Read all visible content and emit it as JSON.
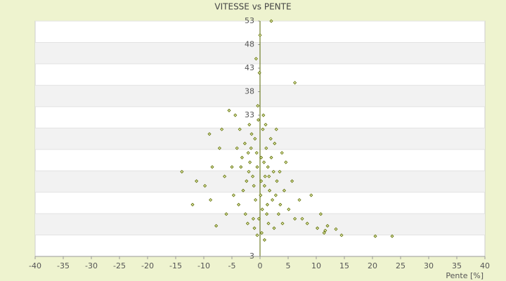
{
  "chart_data": {
    "type": "scatter",
    "title": "VITESSE vs PENTE",
    "x_label": "Pente [%]",
    "color": "#5b6b00",
    "xlim": [
      -40,
      40
    ],
    "xticks": [
      -40,
      -35,
      -30,
      -25,
      -20,
      -15,
      -10,
      -5,
      0,
      5,
      10,
      15,
      20,
      25,
      30,
      35,
      40
    ],
    "ylim": [
      3,
      53
    ],
    "yticks": [
      3,
      33,
      38,
      43,
      48,
      53
    ],
    "x": [
      0.2,
      -0.5,
      1.1,
      -1.3,
      0.8,
      -2.1,
      2.4,
      -0.9,
      0.5,
      1.7,
      -1.8,
      3.0,
      -2.7,
      0.1,
      -0.3,
      1.4,
      -1.1,
      2.2,
      -3.2,
      0.9,
      -0.6,
      1.9,
      -2.4,
      3.6,
      -4.1,
      0.4,
      -1.5,
      2.8,
      -0.2,
      1.2,
      4.3,
      -3.6,
      0.7,
      -0.8,
      5.1,
      -5.0,
      2.0,
      -2.0,
      6.2,
      -6.3,
      1.5,
      -1.0,
      3.3,
      -3.0,
      7.5,
      -7.2,
      0.3,
      0.6,
      -0.4,
      2.6,
      -8.5,
      8.4,
      -9.8,
      10.2,
      -11.3,
      11.6,
      -13.9,
      12.0,
      14.5,
      20.5,
      23.5,
      2.0,
      6.2,
      -0.7,
      -1.9,
      -4.4,
      -5.5,
      -3.8,
      -6.8,
      -2.6,
      1.0,
      3.9,
      4.6,
      5.7,
      2.9,
      -0.1,
      0.0,
      1.3,
      -1.2,
      -12.0,
      -9.0,
      -7.8,
      -8.8,
      9.1,
      10.8,
      11.4,
      13.5,
      -4.7,
      4.0,
      -0.5,
      0.8,
      -2.2,
      2.5,
      -3.4,
      3.5,
      0.2,
      -1.6,
      1.6,
      -6.0,
      7.0
    ],
    "values": [
      24,
      22,
      26,
      20,
      18,
      25,
      21,
      28,
      30,
      17,
      23,
      19,
      27,
      16,
      32,
      22,
      18,
      15,
      24,
      20,
      25,
      28,
      19,
      14,
      26,
      13,
      29,
      16,
      11,
      12,
      17,
      30,
      23,
      15,
      13,
      22,
      24,
      21,
      11,
      20,
      10,
      9,
      12,
      17,
      11,
      26,
      8,
      33,
      35,
      27,
      22,
      10,
      18,
      9,
      19,
      8.5,
      21,
      9.5,
      7.5,
      7.3,
      7.3,
      53,
      39.9,
      45,
      31,
      33,
      34,
      14,
      30,
      12,
      31,
      25,
      23,
      19,
      30,
      42,
      50,
      14,
      11,
      14,
      29,
      9.5,
      15,
      16,
      12,
      8,
      8.8,
      16,
      10,
      7.5,
      6.5,
      10,
      9,
      22,
      21,
      19,
      26,
      20,
      12,
      15
    ]
  }
}
